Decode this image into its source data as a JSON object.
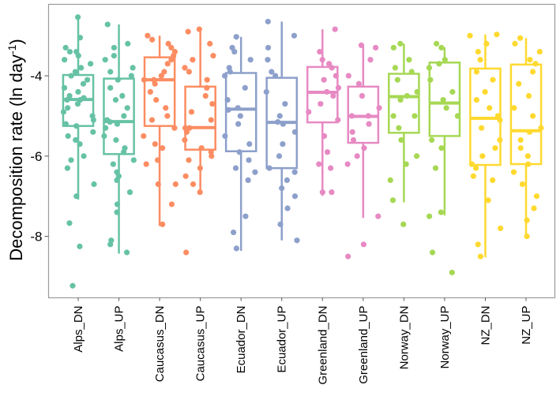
{
  "chart_data": {
    "type": "boxplot",
    "xlabel": "",
    "ylabel": "Decomposition rate (ln day",
    "ylabel_superscript": "-1",
    "ylabel_close": ")",
    "ylim": [
      -9.53,
      -2.22
    ],
    "yticks": [
      -4,
      -6,
      -8
    ],
    "ytick_labels": [
      "-4",
      "-6",
      "-8"
    ],
    "grid": false,
    "categories": [
      "Alps_DN",
      "Alps_UP",
      "Caucasus_DN",
      "Caucasus_UP",
      "Ecuador_DN",
      "Ecuador_UP",
      "Greenland_DN",
      "Greenland_UP",
      "Norway_DN",
      "Norway_UP",
      "NZ_DN",
      "NZ_UP"
    ],
    "colors": [
      "#66C2A5",
      "#66C2A5",
      "#FC8D62",
      "#FC8D62",
      "#8DA0CB",
      "#8DA0CB",
      "#E78AC3",
      "#E78AC3",
      "#A6D854",
      "#A6D854",
      "#FFD92F",
      "#FFD92F"
    ],
    "boxes": [
      {
        "whisker_high": -2.54,
        "q3": -3.98,
        "median": -4.59,
        "q1": -5.25,
        "whisker_low": -7.08
      },
      {
        "whisker_high": -2.72,
        "q3": -4.07,
        "median": -5.14,
        "q1": -5.95,
        "whisker_low": -8.43
      },
      {
        "whisker_high": -3.0,
        "q3": -3.54,
        "median": -4.1,
        "q1": -5.25,
        "whisker_low": -7.74
      },
      {
        "whisker_high": -2.84,
        "q3": -4.27,
        "median": -5.29,
        "q1": -5.84,
        "whisker_low": -6.89
      },
      {
        "whisker_high": -3.03,
        "q3": -3.93,
        "median": -4.83,
        "q1": -5.88,
        "whisker_low": -8.36
      },
      {
        "whisker_high": -2.65,
        "q3": -4.05,
        "median": -5.16,
        "q1": -6.3,
        "whisker_low": -8.1
      },
      {
        "whisker_high": -2.84,
        "q3": -3.78,
        "median": -4.41,
        "q1": -5.16,
        "whisker_low": -6.99
      },
      {
        "whisker_high": -3.24,
        "q3": -4.27,
        "median": -5.01,
        "q1": -5.67,
        "whisker_low": -7.54
      },
      {
        "whisker_high": -3.2,
        "q3": -3.95,
        "median": -4.52,
        "q1": -5.42,
        "whisker_low": -7.15
      },
      {
        "whisker_high": -3.29,
        "q3": -3.67,
        "median": -4.68,
        "q1": -5.5,
        "whisker_low": -7.48
      },
      {
        "whisker_high": -2.97,
        "q3": -3.82,
        "median": -5.06,
        "q1": -6.22,
        "whisker_low": -8.52
      },
      {
        "whisker_high": -3.06,
        "q3": -3.72,
        "median": -5.37,
        "q1": -6.2,
        "whisker_low": -8.0
      }
    ],
    "points": [
      [
        -2.54,
        -3.05,
        -3.3,
        -3.4,
        -3.4,
        -3.5,
        -3.6,
        -3.7,
        -3.8,
        -3.9,
        -4.0,
        -4.1,
        -4.2,
        -4.3,
        -4.4,
        -4.5,
        -4.55,
        -4.6,
        -4.6,
        -4.7,
        -4.8,
        -4.9,
        -5.0,
        -5.1,
        -5.2,
        -5.25,
        -5.4,
        -5.5,
        -5.6,
        -5.7,
        -6.0,
        -6.1,
        -6.3,
        -6.7,
        -7.0,
        -7.67,
        -8.25,
        -9.23
      ],
      [
        -2.72,
        -3.2,
        -3.3,
        -3.5,
        -3.6,
        -3.8,
        -3.9,
        -4.0,
        -4.1,
        -4.3,
        -4.5,
        -4.6,
        -4.8,
        -5.0,
        -5.1,
        -5.15,
        -5.2,
        -5.3,
        -5.5,
        -5.6,
        -5.8,
        -5.9,
        -6.1,
        -6.2,
        -6.4,
        -6.5,
        -6.6,
        -6.9,
        -7.2,
        -7.4,
        -8.1,
        -8.2,
        -8.4
      ],
      [
        -3.0,
        -3.1,
        -3.2,
        -3.3,
        -3.4,
        -3.5,
        -3.6,
        -3.7,
        -3.9,
        -4.0,
        -4.1,
        -4.1,
        -4.2,
        -4.4,
        -4.6,
        -4.8,
        -5.0,
        -5.1,
        -5.3,
        -5.5,
        -5.7,
        -5.8,
        -6.1,
        -6.2,
        -6.7,
        -6.7,
        -7.2,
        -7.7
      ],
      [
        -2.84,
        -2.9,
        -3.2,
        -3.5,
        -3.6,
        -3.8,
        -3.9,
        -4.1,
        -4.3,
        -4.5,
        -4.7,
        -4.9,
        -5.1,
        -5.3,
        -5.3,
        -5.4,
        -5.6,
        -5.8,
        -5.9,
        -6.0,
        -6.1,
        -6.3,
        -6.5,
        -6.7,
        -6.9,
        -8.4
      ],
      [
        -3.03,
        -3.3,
        -3.4,
        -3.6,
        -3.8,
        -3.9,
        -4.0,
        -4.3,
        -4.6,
        -4.8,
        -4.85,
        -5.0,
        -5.2,
        -5.5,
        -5.7,
        -5.9,
        -6.1,
        -6.3,
        -6.4,
        -6.6,
        -7.5,
        -7.9,
        -8.3
      ],
      [
        -2.65,
        -3.0,
        -3.3,
        -3.6,
        -3.9,
        -4.0,
        -4.4,
        -4.7,
        -5.0,
        -5.15,
        -5.2,
        -5.4,
        -5.7,
        -6.0,
        -6.3,
        -6.4,
        -6.6,
        -6.8,
        -7.0,
        -7.3,
        -7.7,
        -8.1
      ],
      [
        -2.84,
        -3.4,
        -3.6,
        -3.7,
        -3.8,
        -4.0,
        -4.1,
        -4.3,
        -4.4,
        -4.5,
        -4.7,
        -4.9,
        -5.1,
        -5.5,
        -5.9,
        -6.2,
        -6.3,
        -6.9,
        -6.9
      ],
      [
        -3.24,
        -3.3,
        -3.6,
        -4.0,
        -4.2,
        -4.5,
        -4.8,
        -5.0,
        -5.0,
        -5.2,
        -5.4,
        -5.6,
        -5.8,
        -6.0,
        -6.2,
        -7.5,
        -8.2,
        -8.5
      ],
      [
        -3.2,
        -3.3,
        -3.6,
        -3.8,
        -3.9,
        -4.1,
        -4.4,
        -4.5,
        -4.6,
        -5.0,
        -5.0,
        -5.3,
        -5.6,
        -6.0,
        -6.2,
        -6.6,
        -7.1,
        -7.7
      ],
      [
        -3.2,
        -3.3,
        -3.6,
        -3.7,
        -3.8,
        -4.1,
        -4.4,
        -4.6,
        -4.8,
        -5.0,
        -5.6,
        -5.8,
        -6.3,
        -7.4,
        -7.5,
        -8.4,
        -8.9
      ],
      [
        -2.97,
        -3.0,
        -3.2,
        -3.4,
        -3.6,
        -3.9,
        -4.1,
        -4.4,
        -4.6,
        -4.8,
        -5.0,
        -5.1,
        -5.3,
        -5.6,
        -5.8,
        -6.0,
        -6.2,
        -6.3,
        -6.5,
        -6.6,
        -7.1,
        -7.8,
        -8.2,
        -8.5
      ],
      [
        -3.06,
        -3.2,
        -3.4,
        -3.6,
        -3.7,
        -3.9,
        -4.2,
        -4.5,
        -4.8,
        -5.0,
        -5.3,
        -5.4,
        -5.6,
        -5.8,
        -6.0,
        -6.2,
        -6.4,
        -6.7,
        -7.0,
        -7.3,
        -7.6,
        -8.0
      ]
    ]
  }
}
